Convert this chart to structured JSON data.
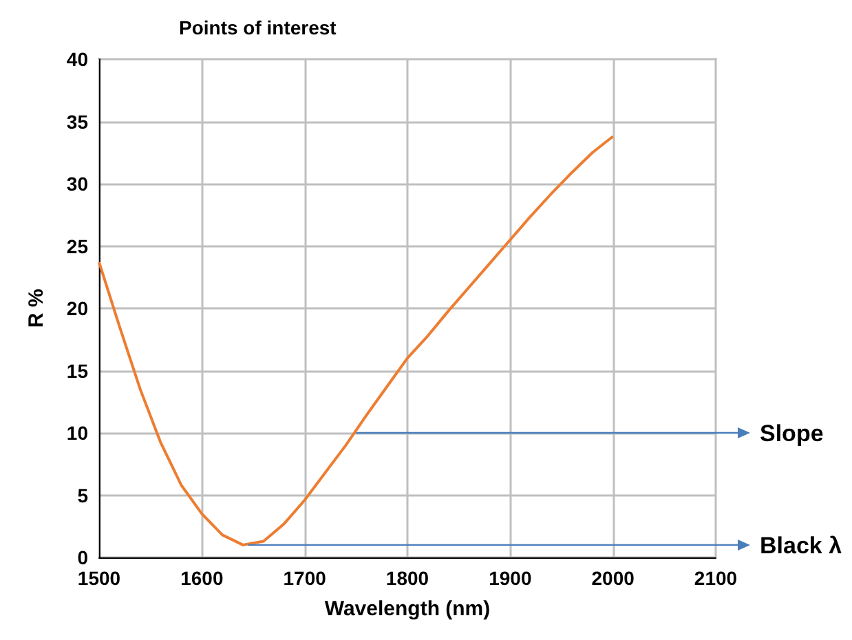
{
  "chart_data": {
    "type": "line",
    "title": "Points of interest",
    "xlabel": "Wavelength (nm)",
    "ylabel": "R %",
    "x": [
      1500,
      1520,
      1540,
      1560,
      1580,
      1600,
      1620,
      1640,
      1660,
      1680,
      1700,
      1720,
      1740,
      1760,
      1780,
      1800,
      1820,
      1840,
      1860,
      1880,
      1900,
      1920,
      1940,
      1960,
      1980,
      2000
    ],
    "series": [
      {
        "color": "#ed7d31",
        "values": [
          23.7,
          18.5,
          13.5,
          9.2,
          5.8,
          3.5,
          1.8,
          1.0,
          1.3,
          2.7,
          4.6,
          6.8,
          9.0,
          11.4,
          13.7,
          16,
          17.8,
          19.8,
          21.7,
          23.6,
          25.5,
          27.4,
          29.2,
          30.9,
          32.5,
          33.8
        ]
      }
    ],
    "xlim": [
      1500,
      2100
    ],
    "xticks": [
      1500,
      1600,
      1700,
      1800,
      1900,
      2000,
      2100
    ],
    "ylim": [
      0,
      40
    ],
    "yticks": [
      0,
      5,
      10,
      15,
      20,
      25,
      30,
      35,
      40
    ],
    "grid": true,
    "marker": "none",
    "line_style": "solid",
    "annotations": [
      {
        "text": "Slope",
        "x": 1750,
        "y": 10
      },
      {
        "text": "Black λ",
        "x": 1645,
        "y": 1
      }
    ]
  }
}
